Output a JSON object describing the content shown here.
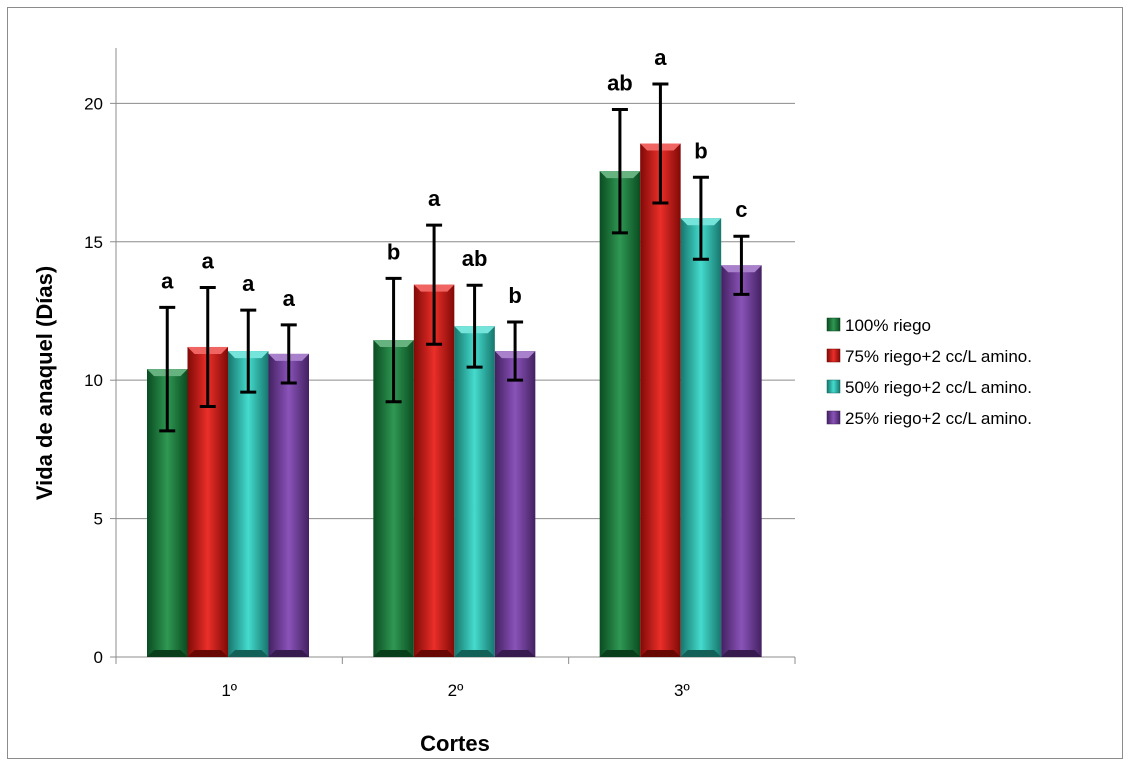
{
  "chart_data": {
    "type": "bar",
    "title": "",
    "xlabel": "Cortes",
    "ylabel": "Vida de anaquel  (Días)",
    "categories": [
      "1º",
      "2º",
      "3º"
    ],
    "ylim": [
      0,
      22
    ],
    "yticks": [
      0,
      5,
      10,
      15,
      20
    ],
    "grid": true,
    "legend_position": "right",
    "series": [
      {
        "name": "100% riego",
        "color": "#138a3c",
        "values": [
          10.4,
          11.45,
          17.55
        ],
        "errors": [
          2.23,
          2.23,
          2.23
        ],
        "letters": [
          "a",
          "b",
          "ab"
        ]
      },
      {
        "name": "75% riego+2 cc/L amino.",
        "color": "#e8120c",
        "values": [
          11.2,
          13.45,
          18.55
        ],
        "errors": [
          2.15,
          2.15,
          2.15
        ],
        "letters": [
          "a",
          "a",
          "a"
        ]
      },
      {
        "name": "50% riego+2 cc/L amino.",
        "color": "#2ad6c6",
        "values": [
          11.05,
          11.95,
          15.85
        ],
        "errors": [
          1.48,
          1.48,
          1.48
        ],
        "letters": [
          "a",
          "ab",
          "b"
        ]
      },
      {
        "name": "25% riego+2 cc/L amino.",
        "color": "#7a3cb0",
        "values": [
          10.95,
          11.05,
          14.15
        ],
        "errors": [
          1.05,
          1.05,
          1.05
        ],
        "letters": [
          "a",
          "b",
          "c"
        ]
      }
    ]
  }
}
